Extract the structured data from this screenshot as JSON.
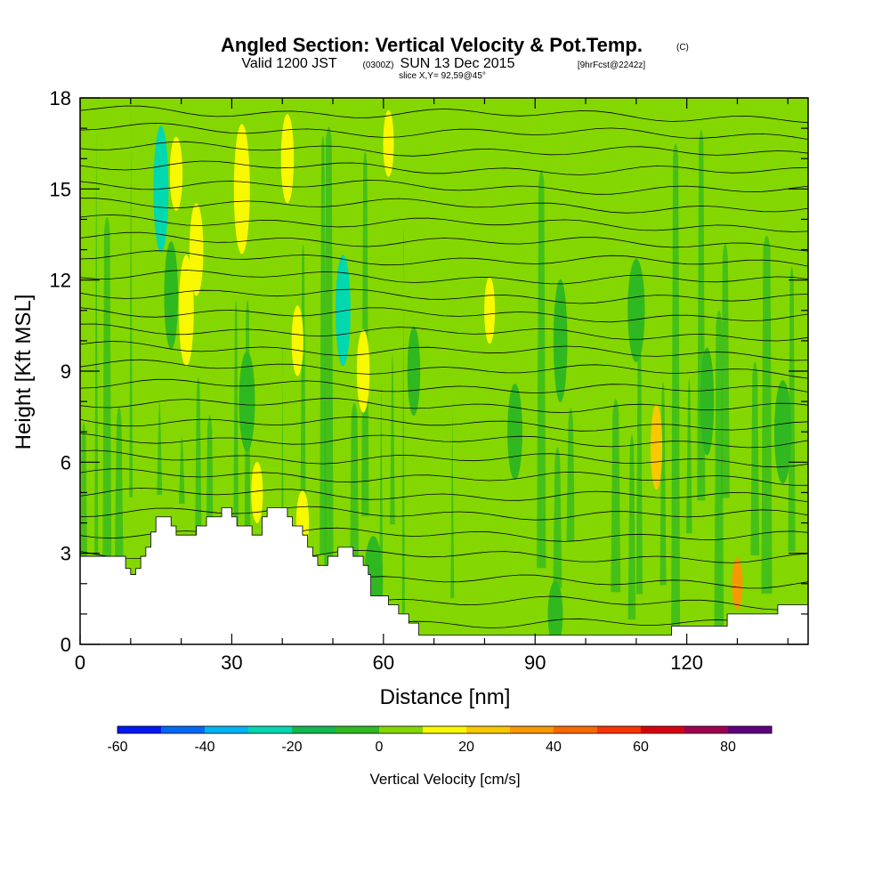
{
  "header": {
    "title": "Angled Section: Vertical Velocity & Pot.Temp.",
    "copyright_mark": "(C)",
    "valid_prefix": "Valid 1200 JST",
    "valid_utc": "(0300Z)",
    "valid_date": "SUN 13 Dec 2015",
    "forecast_tag": "[9hrFcst@2242z]",
    "slice": "slice X,Y= 92,59@45°"
  },
  "colors": {
    "background_field": "#84d700",
    "terrain": "#ffffff",
    "contour_line": "#000000"
  },
  "chart_data": {
    "type": "heatmap",
    "title": "Angled Section: Vertical Velocity & Pot.Temp.",
    "xlabel": "Distance [nm]",
    "ylabel": "Height [Kft MSL]",
    "xlim": [
      0,
      144
    ],
    "ylim": [
      0,
      18
    ],
    "x_ticks": [
      "0",
      "30",
      "60",
      "90",
      "120"
    ],
    "x_tick_values": [
      0,
      30,
      60,
      90,
      120
    ],
    "y_ticks": [
      "0",
      "3",
      "6",
      "9",
      "12",
      "15",
      "18"
    ],
    "y_tick_values": [
      0,
      3,
      6,
      9,
      12,
      15,
      18
    ],
    "terrain_height_kft": [
      [
        0,
        2.9
      ],
      [
        3,
        2.9
      ],
      [
        8,
        2.9
      ],
      [
        9,
        2.5
      ],
      [
        10,
        2.3
      ],
      [
        11,
        2.5
      ],
      [
        12,
        2.9
      ],
      [
        13,
        3.2
      ],
      [
        14,
        3.7
      ],
      [
        15,
        4.2
      ],
      [
        17,
        4.2
      ],
      [
        18,
        3.9
      ],
      [
        19,
        3.6
      ],
      [
        22,
        3.6
      ],
      [
        23,
        3.9
      ],
      [
        25,
        4.2
      ],
      [
        28,
        4.5
      ],
      [
        30,
        4.2
      ],
      [
        31,
        3.9
      ],
      [
        33,
        3.9
      ],
      [
        34,
        3.6
      ],
      [
        36,
        4.2
      ],
      [
        37,
        4.5
      ],
      [
        40,
        4.5
      ],
      [
        41,
        4.2
      ],
      [
        42,
        3.9
      ],
      [
        44,
        3.6
      ],
      [
        45,
        3.2
      ],
      [
        46,
        2.9
      ],
      [
        47,
        2.6
      ],
      [
        49,
        2.9
      ],
      [
        51,
        3.2
      ],
      [
        53,
        3.2
      ],
      [
        54,
        2.9
      ],
      [
        56,
        2.6
      ],
      [
        57,
        2.3
      ],
      [
        57.5,
        1.6
      ],
      [
        60,
        1.6
      ],
      [
        61,
        1.3
      ],
      [
        63,
        1.0
      ],
      [
        65,
        0.7
      ],
      [
        67,
        0.3
      ],
      [
        116,
        0.3
      ],
      [
        117,
        0.6
      ],
      [
        123,
        0.6
      ],
      [
        128,
        1.0
      ],
      [
        137,
        1.0
      ],
      [
        138,
        1.3
      ],
      [
        144,
        1.3
      ]
    ],
    "updrafts_cms": [
      {
        "x": 19,
        "y": 15.5,
        "w": 8,
        "h": 1.5,
        "v": 15
      },
      {
        "x": 21,
        "y": 11,
        "w": 10,
        "h": 2.5,
        "v": 15
      },
      {
        "x": 23,
        "y": 13,
        "w": 9,
        "h": 2.0,
        "v": 15
      },
      {
        "x": 32,
        "y": 15,
        "w": 11,
        "h": 3.0,
        "v": 15
      },
      {
        "x": 41,
        "y": 16,
        "w": 8,
        "h": 2.0,
        "v": 15
      },
      {
        "x": 43,
        "y": 10,
        "w": 7,
        "h": 1.5,
        "v": 15
      },
      {
        "x": 61,
        "y": 16.5,
        "w": 6,
        "h": 1.5,
        "v": 15
      },
      {
        "x": 56,
        "y": 9,
        "w": 8,
        "h": 1.8,
        "v": 15
      },
      {
        "x": 81,
        "y": 11,
        "w": 6,
        "h": 1.5,
        "v": 15
      },
      {
        "x": 114,
        "y": 6.5,
        "w": 7,
        "h": 2.0,
        "v": 22
      },
      {
        "x": 130,
        "y": 2.0,
        "w": 6,
        "h": 1.0,
        "v": 30
      },
      {
        "x": 35,
        "y": 5.0,
        "w": 7,
        "h": 1.2,
        "v": 15
      },
      {
        "x": 44,
        "y": 4.0,
        "w": 8,
        "h": 1.2,
        "v": 15
      }
    ],
    "downdrafts_cms": [
      {
        "x": 16,
        "y": 15,
        "w": 10,
        "h": 3.0,
        "v": -25
      },
      {
        "x": 52,
        "y": 11,
        "w": 10,
        "h": 2.5,
        "v": -25
      },
      {
        "x": 18,
        "y": 11.5,
        "w": 9,
        "h": 2.5,
        "v": -10
      },
      {
        "x": 33,
        "y": 8,
        "w": 11,
        "h": 2.0,
        "v": -10
      },
      {
        "x": 95,
        "y": 10,
        "w": 9,
        "h": 3.0,
        "v": -10
      },
      {
        "x": 110,
        "y": 11,
        "w": 12,
        "h": 2.0,
        "v": -10
      },
      {
        "x": 139,
        "y": 7,
        "w": 12,
        "h": 2.0,
        "v": -10
      },
      {
        "x": 66,
        "y": 9,
        "w": 8,
        "h": 2.0,
        "v": -10
      },
      {
        "x": 86,
        "y": 7,
        "w": 10,
        "h": 2.0,
        "v": -10
      },
      {
        "x": 124,
        "y": 8,
        "w": 9,
        "h": 2.5,
        "v": -10
      },
      {
        "x": 58,
        "y": 2.0,
        "w": 14,
        "h": 1.5,
        "v": -10
      },
      {
        "x": 94,
        "y": 1.0,
        "w": 10,
        "h": 1.0,
        "v": -10
      }
    ],
    "isentrope_levels_kft": [
      0.8,
      1.5,
      2.2,
      3.0,
      3.7,
      4.4,
      5.0,
      5.6,
      6.2,
      6.8,
      7.4,
      8.0,
      8.6,
      9.2,
      9.8,
      10.4,
      11.0,
      11.6,
      12.2,
      12.8,
      13.4,
      14.0,
      14.6,
      15.2,
      15.8,
      16.4,
      17.0,
      17.6
    ],
    "colorbar": {
      "label": "Vertical Velocity [cm/s]",
      "min": -60,
      "max": 90,
      "step": 10,
      "tick_labels": [
        "-60",
        "-40",
        "-20",
        "0",
        "20",
        "40",
        "60",
        "80"
      ],
      "tick_values": [
        -60,
        -40,
        -20,
        0,
        20,
        40,
        60,
        80
      ],
      "colors": [
        "#0018f4",
        "#0068f4",
        "#00b4f4",
        "#00d8b0",
        "#10b850",
        "#30b820",
        "#84d700",
        "#f8f800",
        "#f8c800",
        "#f89800",
        "#f86800",
        "#f83400",
        "#d80010",
        "#a00050",
        "#600080"
      ]
    }
  }
}
